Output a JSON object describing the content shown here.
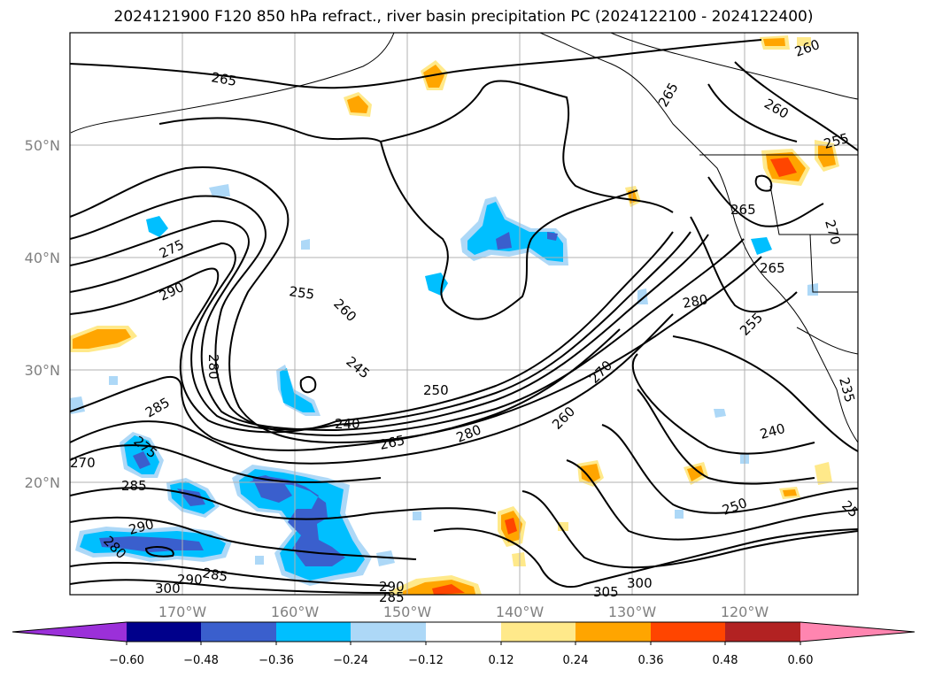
{
  "title": "2024121900 F120 850 hPa refract., river basin precipitation PC (2024122100 - 2024122400)",
  "lat_labels": [
    {
      "text": "50°N",
      "lat": 50
    },
    {
      "text": "40°N",
      "lat": 40
    },
    {
      "text": "30°N",
      "lat": 30
    },
    {
      "text": "20°N",
      "lat": 20
    }
  ],
  "lon_labels": [
    {
      "text": "170°W",
      "lon": -170
    },
    {
      "text": "160°W",
      "lon": -160
    },
    {
      "text": "150°W",
      "lon": -150
    },
    {
      "text": "140°W",
      "lon": -140
    },
    {
      "text": "130°W",
      "lon": -130
    },
    {
      "text": "120°W",
      "lon": -120
    }
  ],
  "colorbar": {
    "ticks": [
      "−0.60",
      "−0.48",
      "−0.36",
      "−0.24",
      "−0.12",
      "0.12",
      "0.24",
      "0.36",
      "0.48",
      "0.60"
    ],
    "colors": [
      "#9b30d9",
      "#00008b",
      "#3a5fcd",
      "#00bfff",
      "#add8f7",
      "#ffffff",
      "#ffe98a",
      "#ffa500",
      "#ff4500",
      "#b22222",
      "#ff85b0"
    ]
  },
  "contour_labels": [
    "265",
    "260",
    "265",
    "260",
    "255",
    "275",
    "290",
    "255",
    "260",
    "280",
    "245",
    "250",
    "240",
    "265",
    "280",
    "260",
    "270",
    "285",
    "275",
    "270",
    "285",
    "290",
    "280",
    "285",
    "290",
    "300",
    "290",
    "285",
    "305",
    "300",
    "280",
    "265",
    "270",
    "265",
    "255",
    "240",
    "250",
    "235",
    "25"
  ]
}
